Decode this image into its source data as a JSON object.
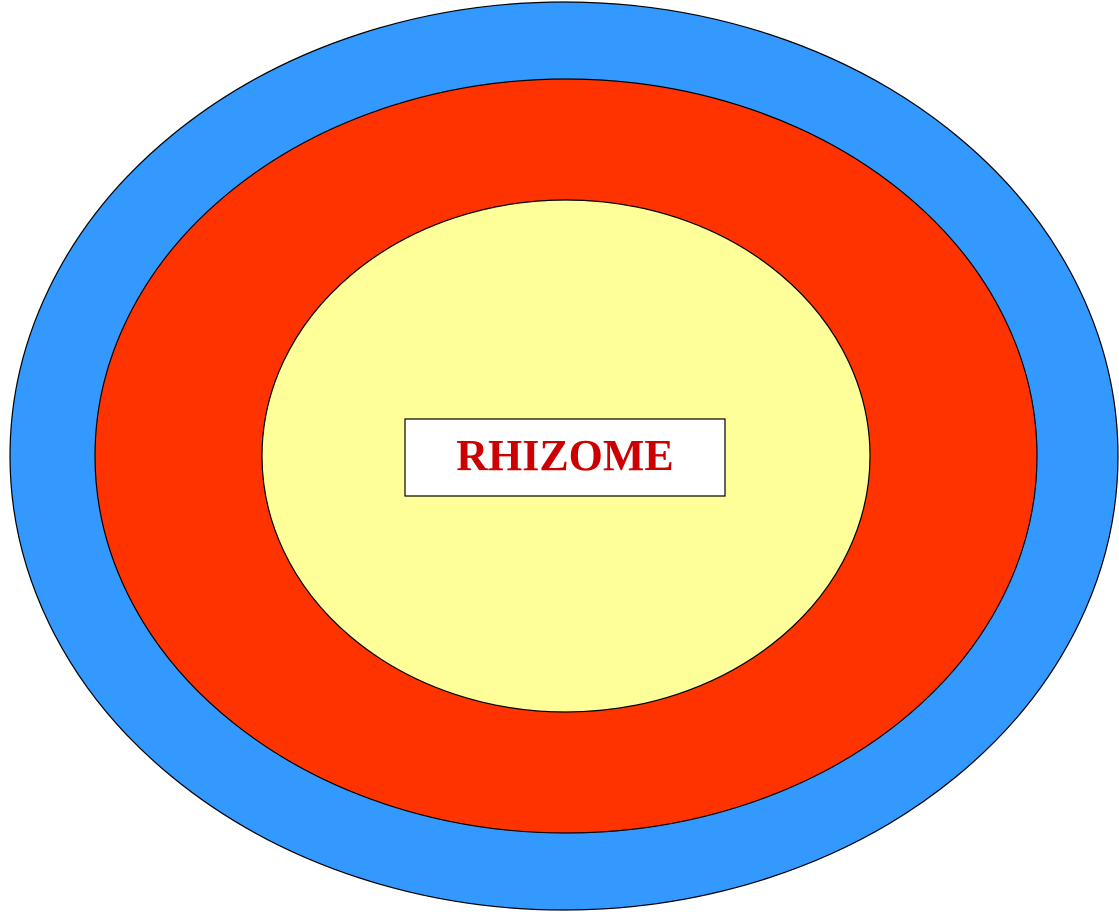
{
  "nodes": [
    {
      "label": "RHIZOME"
    }
  ]
}
